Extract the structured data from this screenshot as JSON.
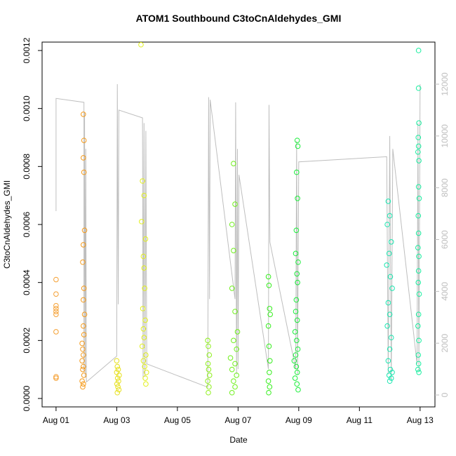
{
  "chart_data": {
    "type": "scatter",
    "title": "ATOM1 Southbound C3toCnAldehydes_GMI",
    "xlabel": "Date",
    "ylabel": "C3toCnAldehydes_GMI",
    "xlim": [
      -0.46,
      12.49
    ],
    "xticks": [
      {
        "value": 0,
        "label": "Aug 01"
      },
      {
        "value": 2,
        "label": "Aug 03"
      },
      {
        "value": 4,
        "label": "Aug 05"
      },
      {
        "value": 6,
        "label": "Aug 07"
      },
      {
        "value": 8,
        "label": "Aug 09"
      },
      {
        "value": 10,
        "label": "Aug 11"
      },
      {
        "value": 12,
        "label": "Aug 13"
      }
    ],
    "ylim": [
      -2.9e-05,
      0.001229
    ],
    "yticks": [
      {
        "value": 0,
        "label": "0.0000"
      },
      {
        "value": 0.0002,
        "label": "0.0002"
      },
      {
        "value": 0.0004,
        "label": "0.0004"
      },
      {
        "value": 0.0006,
        "label": "0.0006"
      },
      {
        "value": 0.0008,
        "label": "0.0008"
      },
      {
        "value": 0.001,
        "label": "0.0010"
      },
      {
        "value": 0.0012,
        "label": "0.0012"
      }
    ],
    "y2lim": [
      -460,
      13625
    ],
    "y2ticks": [
      0,
      2000,
      4000,
      6000,
      8000,
      10000,
      12000
    ],
    "y2color": "#bebebe",
    "series": [
      {
        "type": "line",
        "axis": "y2",
        "color": "#bebebe",
        "x": [
          0,
          0,
          0.92,
          0.92,
          0.94,
          0.96,
          0.98,
          1.0,
          2.0,
          2.02,
          2.05,
          2.07,
          2.85,
          2.87,
          2.9,
          2.93,
          2.96,
          2.99,
          5.0,
          5.03,
          5.06,
          5.08,
          5.9,
          5.92,
          5.95,
          5.98,
          6.0,
          6.03,
          7.0,
          7.02,
          7.05,
          7.9,
          7.93,
          7.96,
          8.0,
          10.9,
          10.95,
          11.0,
          11.05,
          11.1,
          11.9,
          11.93,
          11.96,
          12.0
        ],
        "values": [
          7100,
          11450,
          11300,
          900,
          10900,
          700,
          9500,
          500,
          1500,
          12000,
          3500,
          11000,
          10700,
          600,
          10500,
          700,
          10200,
          1200,
          300,
          11500,
          3700,
          11400,
          3700,
          11300,
          800,
          9500,
          1000,
          8500,
          1000,
          11200,
          5900,
          1000,
          9800,
          800,
          9000,
          9200,
          800,
          10000,
          600,
          9500,
          1200,
          10500,
          900,
          12000
        ]
      },
      {
        "color": "#f5a033",
        "x": [
          0,
          0,
          0,
          0,
          0,
          0,
          0,
          0,
          0
        ],
        "values": [
          0.00041,
          0.00036,
          0.00032,
          0.00031,
          0.0003,
          0.00029,
          0.00023,
          7.5e-05,
          7e-05
        ]
      },
      {
        "color": "#f59a1a",
        "x": [
          0.9,
          0.92,
          0.9,
          0.92,
          0.94,
          0.9,
          0.88,
          0.92,
          0.9,
          0.94,
          0.9,
          0.92,
          0.86,
          0.88,
          0.9,
          0.86,
          0.9,
          0.88,
          0.92,
          0.86,
          0.9,
          0.88
        ],
        "values": [
          0.00098,
          0.00089,
          0.00083,
          0.00078,
          0.00058,
          0.00053,
          0.00047,
          0.00038,
          0.00034,
          0.00029,
          0.00025,
          0.00022,
          0.00019,
          0.00017,
          0.00015,
          0.00013,
          0.00011,
          0.0001,
          8e-05,
          6e-05,
          5e-05,
          4e-05
        ]
      },
      {
        "color": "#e6e01a",
        "x": [
          2.0,
          2.02,
          2.05,
          2.0,
          2.08,
          2.03,
          2.06,
          2.01,
          2.04,
          2.07,
          2.02
        ],
        "values": [
          0.00013,
          0.00011,
          0.0001,
          9e-05,
          8e-05,
          7e-05,
          6e-05,
          5e-05,
          4e-05,
          3e-05,
          2e-05
        ]
      },
      {
        "color": "#e2f01a",
        "x": [
          2.8,
          2.85,
          2.9,
          2.82,
          2.95,
          2.88,
          2.9,
          2.92,
          2.86,
          2.94,
          2.88,
          2.9,
          2.84,
          2.96,
          2.88,
          2.92,
          2.98,
          2.94,
          2.96
        ],
        "values": [
          0.00122,
          0.00075,
          0.0007,
          0.00061,
          0.00055,
          0.00049,
          0.00045,
          0.00038,
          0.00031,
          0.00027,
          0.00024,
          0.00021,
          0.00018,
          0.00015,
          0.00013,
          0.00011,
          9e-05,
          7e-05,
          5e-05
        ]
      },
      {
        "color": "#8ef01a",
        "x": [
          5.0,
          5.02,
          5.05,
          5.01,
          5.03,
          5.06,
          5.0,
          5.04,
          5.02
        ],
        "values": [
          0.0002,
          0.00018,
          0.00015,
          0.00012,
          0.0001,
          8e-05,
          6e-05,
          4e-05,
          2e-05
        ]
      },
      {
        "color": "#6ef01a",
        "x": [
          5.85,
          5.9,
          5.8,
          5.85,
          5.8,
          5.9,
          5.98,
          5.85,
          5.95,
          5.75,
          5.9,
          5.8,
          5.95,
          5.85,
          5.9,
          5.8
        ],
        "values": [
          0.00081,
          0.00067,
          0.0006,
          0.00051,
          0.00038,
          0.0003,
          0.00023,
          0.0002,
          0.00017,
          0.00014,
          0.00012,
          0.0001,
          8e-05,
          6e-05,
          4e-05,
          2e-05
        ]
      },
      {
        "color": "#33ee1a",
        "x": [
          7.0,
          7.02,
          7.04,
          7.06,
          7.0,
          7.02,
          7.05,
          7.03,
          7.0,
          7.04,
          7.01
        ],
        "values": [
          0.00042,
          0.00039,
          0.00031,
          0.00029,
          0.00025,
          0.00018,
          0.00013,
          9e-05,
          6e-05,
          4e-05,
          2e-05
        ]
      },
      {
        "color": "#1aee3a",
        "x": [
          7.95,
          7.97,
          7.93,
          7.96,
          7.92,
          7.9,
          7.98,
          7.94,
          7.96,
          7.92,
          7.9,
          7.95,
          7.88,
          7.93,
          7.97,
          7.9,
          7.85,
          7.92,
          7.95,
          7.88,
          7.94,
          7.98
        ],
        "values": [
          0.00089,
          0.00087,
          0.00078,
          0.00069,
          0.00058,
          0.0005,
          0.00047,
          0.00043,
          0.0004,
          0.00034,
          0.0003,
          0.00027,
          0.00023,
          0.0002,
          0.00017,
          0.00015,
          0.00013,
          0.00011,
          9e-05,
          7e-05,
          5e-05,
          3e-05
        ]
      },
      {
        "color": "#1ae6b0",
        "x": [
          10.95,
          11.0,
          10.92,
          11.05,
          10.98,
          10.9,
          11.02,
          11.08,
          10.95,
          11.0,
          10.92,
          11.05,
          11.0,
          10.95,
          11.02,
          11.08,
          10.98,
          11.05,
          11.0
        ],
        "values": [
          0.00068,
          0.00063,
          0.0006,
          0.00054,
          0.0005,
          0.00046,
          0.00042,
          0.00038,
          0.00033,
          0.00029,
          0.00025,
          0.00021,
          0.00017,
          0.00013,
          0.0001,
          9e-05,
          8e-05,
          7e-05,
          6e-05
        ]
      },
      {
        "color": "#1aeea0",
        "x": [
          11.95,
          11.95,
          11.96,
          11.94,
          11.95,
          11.93,
          11.96,
          11.95,
          11.97,
          11.94,
          11.95,
          11.93,
          11.96,
          11.95,
          11.94,
          11.97,
          11.95,
          11.93,
          11.96,
          11.94,
          11.95,
          11.93,
          11.96
        ],
        "values": [
          0.0012,
          0.00107,
          0.00095,
          0.0009,
          0.00087,
          0.00085,
          0.00082,
          0.00073,
          0.00069,
          0.00063,
          0.00057,
          0.00052,
          0.00049,
          0.00044,
          0.0004,
          0.00036,
          0.00029,
          0.00025,
          0.0002,
          0.00015,
          0.00012,
          0.0001,
          9e-05
        ]
      }
    ]
  }
}
